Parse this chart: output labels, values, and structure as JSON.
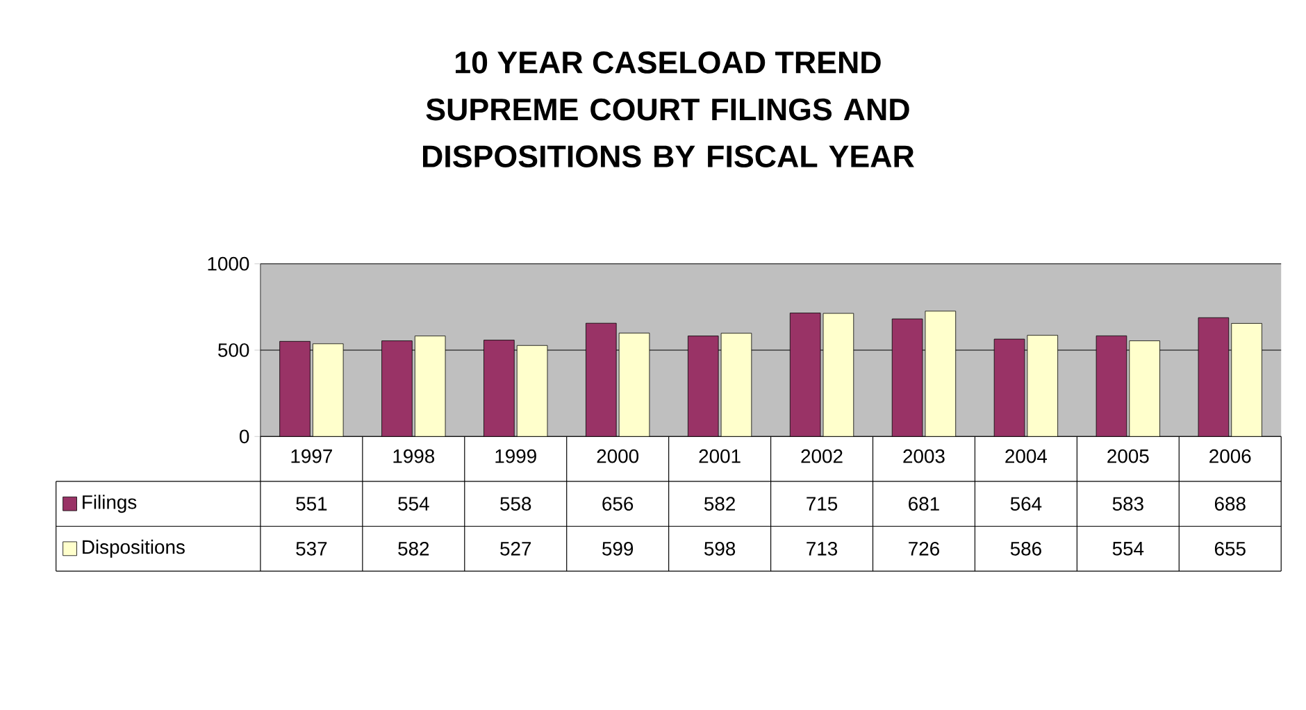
{
  "chart_data": {
    "type": "bar",
    "title": "10 YEAR CASELOAD TREND",
    "subtitle": "SUPREME COURT FILINGS AND DISPOSITIONS BY FISCAL YEAR",
    "categories": [
      "1997",
      "1998",
      "1999",
      "2000",
      "2001",
      "2002",
      "2003",
      "2004",
      "2005",
      "2006"
    ],
    "series": [
      {
        "name": "Filings",
        "color": "#993366",
        "values": [
          551,
          554,
          558,
          656,
          582,
          715,
          681,
          564,
          583,
          688
        ],
        "value_labels": [
          "551",
          "554",
          "558",
          "656",
          "582",
          "715",
          "681",
          "564",
          "583",
          "688"
        ]
      },
      {
        "name": "Dispositions",
        "color": "#ffffcc",
        "values": [
          537,
          582,
          527,
          599,
          598,
          713,
          726,
          586,
          554,
          655
        ],
        "value_labels": [
          "537",
          "582",
          "527",
          "599",
          "598",
          "713",
          "726",
          "586",
          "554",
          "655"
        ]
      }
    ],
    "ylim": [
      0,
      1000
    ],
    "yticks": [
      0,
      500,
      1000
    ],
    "grid": "y",
    "legend": "bottom left"
  }
}
